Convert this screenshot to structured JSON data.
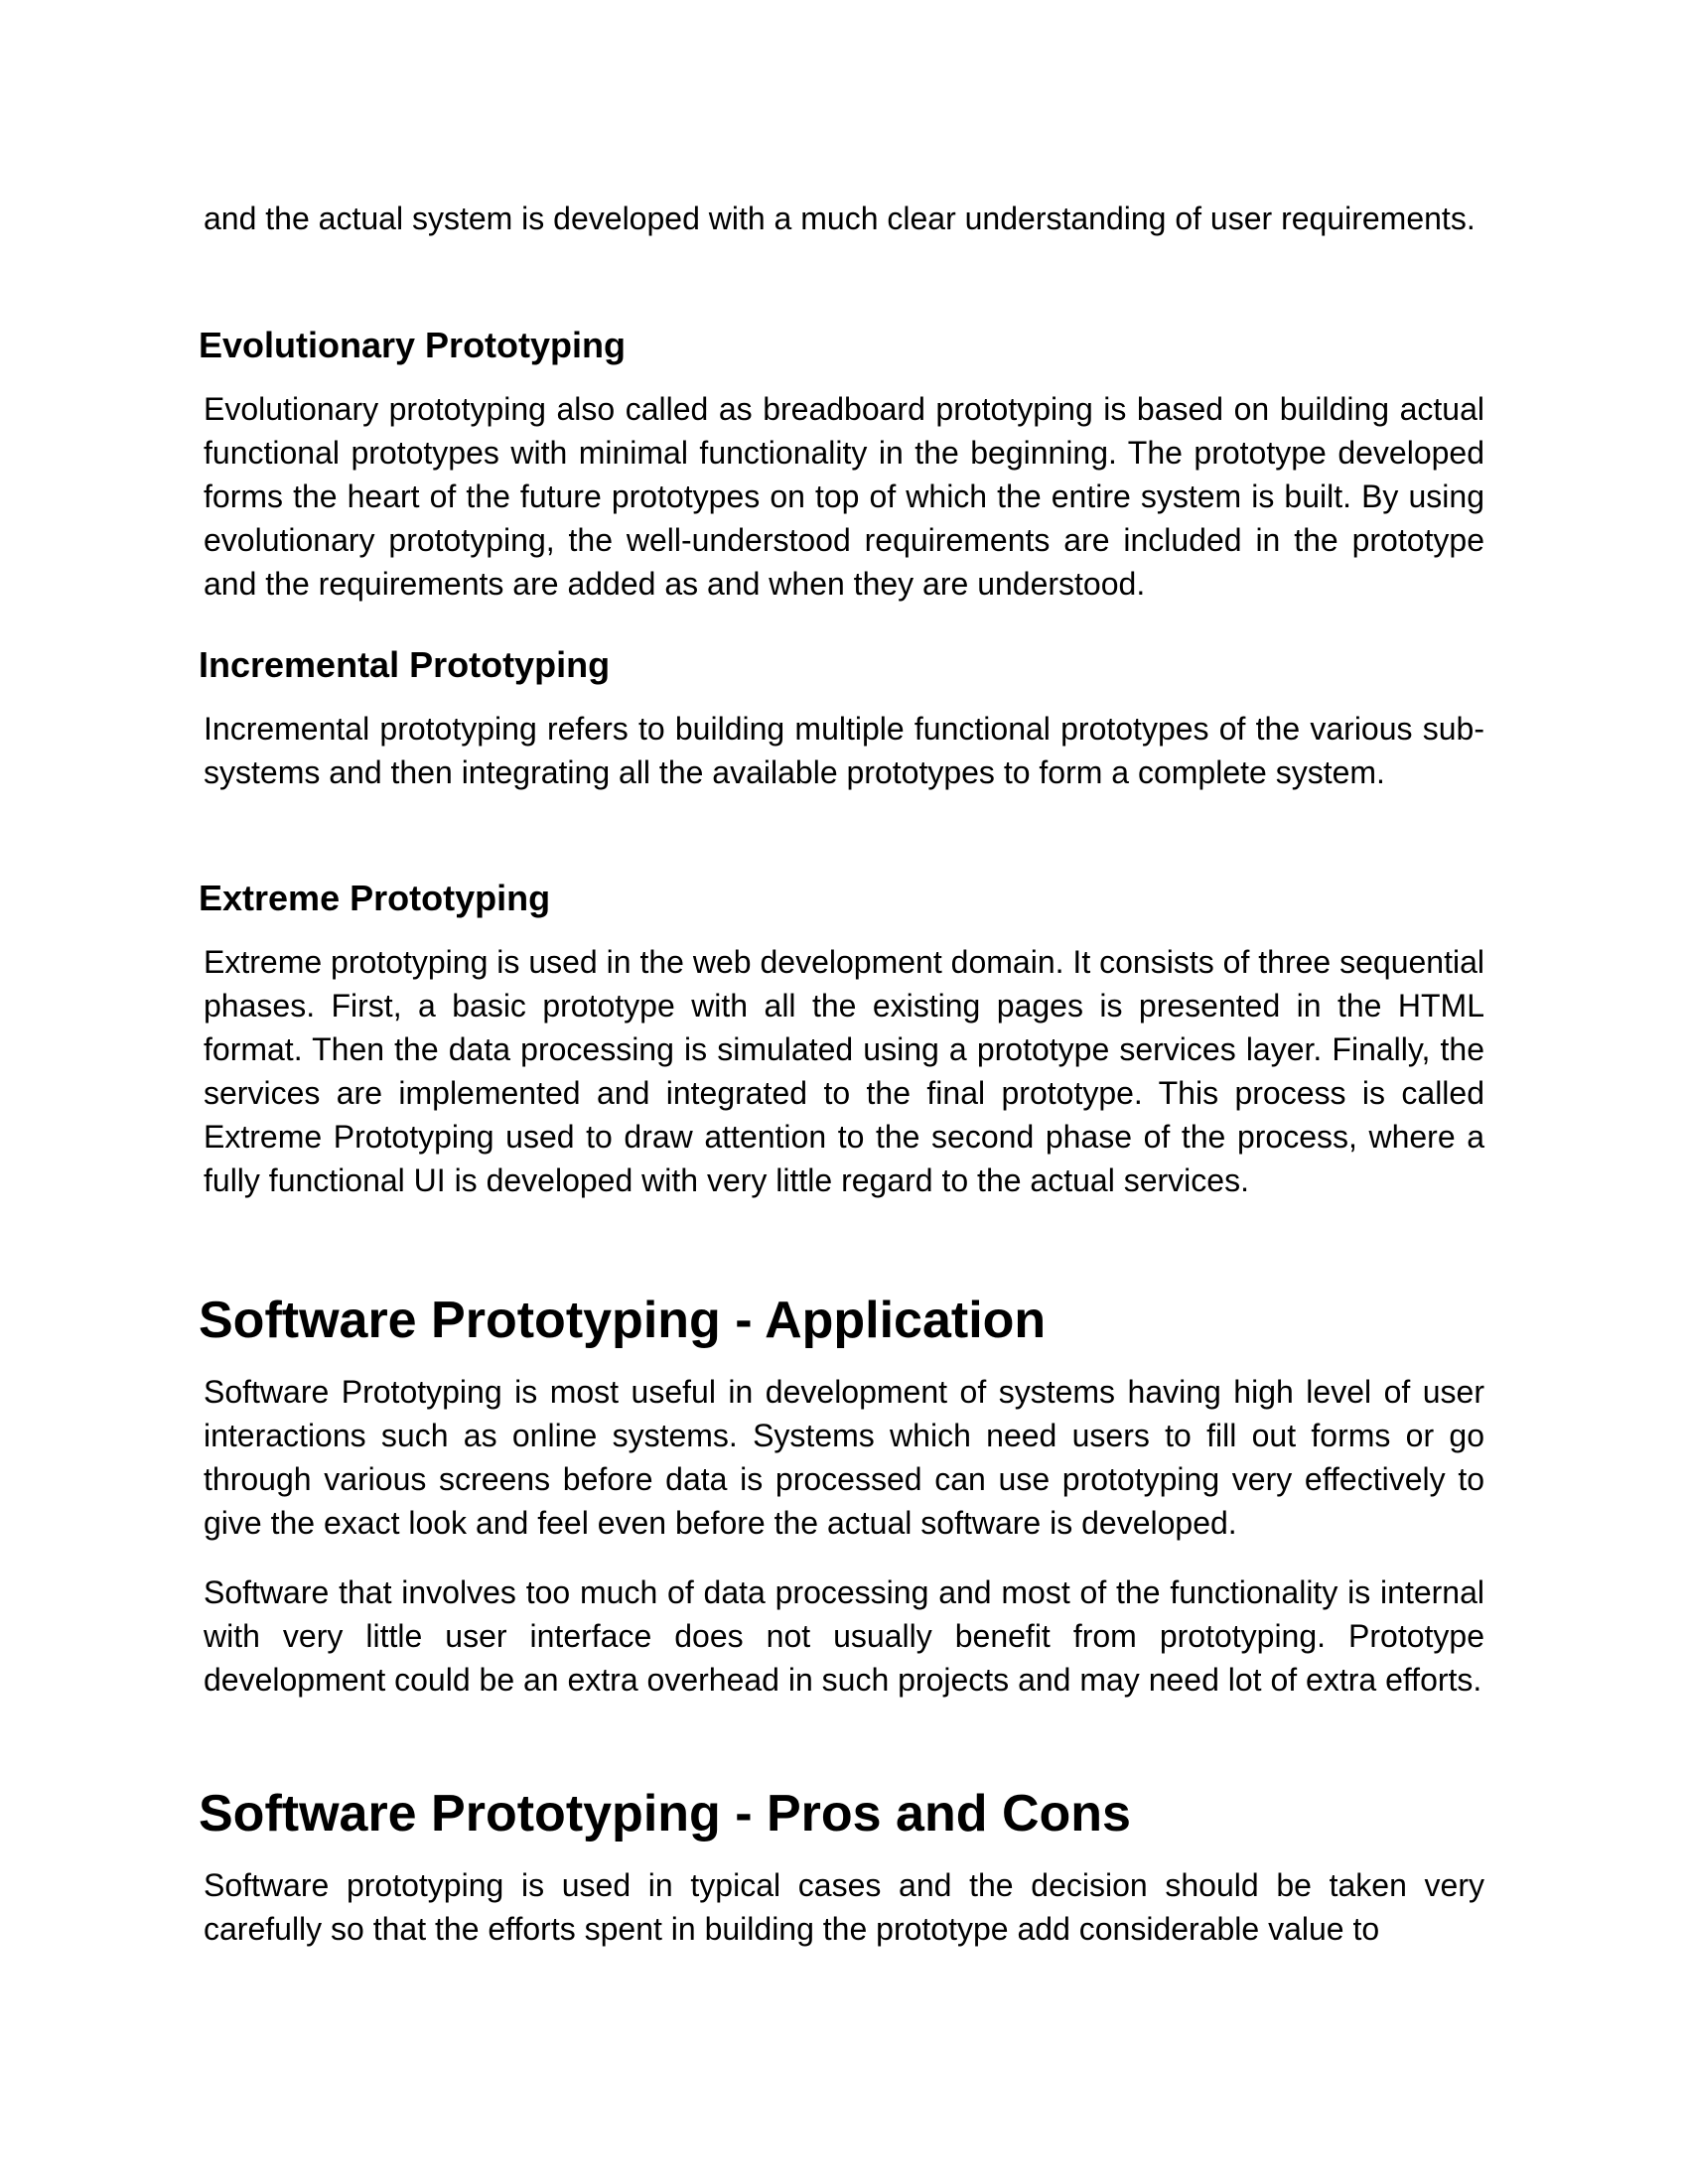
{
  "paragraphs": {
    "intro_cont": "and the actual system is developed with a much clear understanding of user requirements.",
    "evolutionary": "Evolutionary prototyping also called as breadboard prototyping is based on building actual functional prototypes with minimal functionality in the beginning. The prototype developed forms the heart of the future prototypes on top of which the entire system is built. By using evolutionary prototyping, the well-understood requirements are included in the prototype and the requirements are added as and when they are understood.",
    "incremental": "Incremental prototyping refers to building multiple functional prototypes of the various sub-systems and then integrating all the available prototypes to form a complete system.",
    "extreme": "Extreme prototyping is used in the web development domain. It consists of three sequential phases. First, a basic prototype with all the existing pages is presented in the HTML format. Then the data processing is simulated using a prototype services layer. Finally, the services are implemented and integrated to the final prototype. This process is called Extreme Prototyping used to draw attention to the second phase of the process, where a fully functional UI is developed with very little regard to the actual services.",
    "application_1": "Software Prototyping is most useful in development of systems having high level of user interactions such as online systems. Systems which need users to fill out forms or go through various screens before data is processed can use prototyping very effectively to give the exact look and feel even before the actual software is developed.",
    "application_2": "Software that involves too much of data processing and most of the functionality is internal with very little user interface does not usually benefit from prototyping. Prototype development could be an extra overhead in such projects and may need lot of extra efforts.",
    "pros_cons": "Software prototyping is used in typical cases and the decision should be taken very carefully so that the efforts spent in building the prototype add considerable value to"
  },
  "headings": {
    "evolutionary": "Evolutionary Prototyping",
    "incremental": "Incremental Prototyping",
    "extreme": "Extreme Prototyping",
    "application": "Software Prototyping - Application",
    "pros_cons": "Software Prototyping - Pros and Cons"
  }
}
